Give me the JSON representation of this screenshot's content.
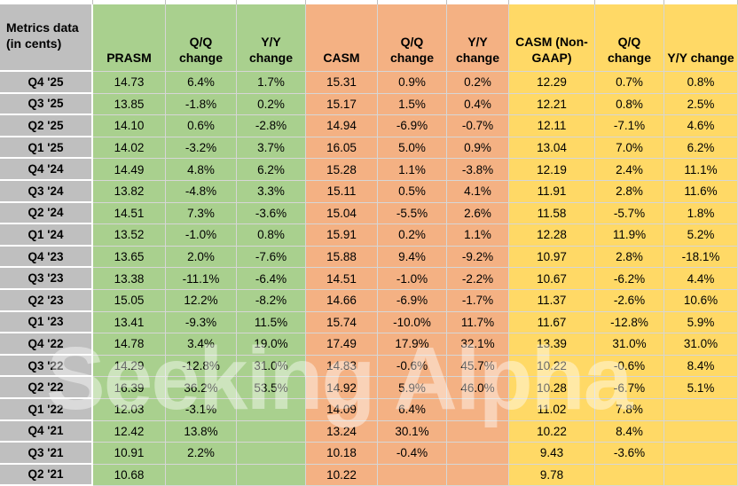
{
  "watermark": "Seeking Alpha",
  "colors": {
    "label_bg": "#BFBFBF",
    "green": "#A9D08E",
    "orange": "#F4B183",
    "yellow": "#FFD966",
    "gridline": "#D6D6D6",
    "text": "#000000"
  },
  "chart_data": {
    "type": "table",
    "corner_header": "Metrics data\n(in cents)",
    "columns": [
      {
        "label": "PRASM",
        "group": "green"
      },
      {
        "label": "Q/Q change",
        "group": "green"
      },
      {
        "label": "Y/Y change",
        "group": "green"
      },
      {
        "label": "CASM",
        "group": "orange"
      },
      {
        "label": "Q/Q change",
        "group": "orange"
      },
      {
        "label": "Y/Y change",
        "group": "orange"
      },
      {
        "label": "CASM (Non-GAAP)",
        "group": "yellow"
      },
      {
        "label": "Q/Q change",
        "group": "yellow"
      },
      {
        "label": "Y/Y change",
        "group": "yellow"
      }
    ],
    "rows": [
      {
        "label": "Q4 '25",
        "values": [
          "14.73",
          "6.4%",
          "1.7%",
          "15.31",
          "0.9%",
          "0.2%",
          "12.29",
          "0.7%",
          "0.8%"
        ]
      },
      {
        "label": "Q3 '25",
        "values": [
          "13.85",
          "-1.8%",
          "0.2%",
          "15.17",
          "1.5%",
          "0.4%",
          "12.21",
          "0.8%",
          "2.5%"
        ]
      },
      {
        "label": "Q2 '25",
        "values": [
          "14.10",
          "0.6%",
          "-2.8%",
          "14.94",
          "-6.9%",
          "-0.7%",
          "12.11",
          "-7.1%",
          "4.6%"
        ]
      },
      {
        "label": "Q1 '25",
        "values": [
          "14.02",
          "-3.2%",
          "3.7%",
          "16.05",
          "5.0%",
          "0.9%",
          "13.04",
          "7.0%",
          "6.2%"
        ]
      },
      {
        "label": "Q4 '24",
        "values": [
          "14.49",
          "4.8%",
          "6.2%",
          "15.28",
          "1.1%",
          "-3.8%",
          "12.19",
          "2.4%",
          "11.1%"
        ]
      },
      {
        "label": "Q3 '24",
        "values": [
          "13.82",
          "-4.8%",
          "3.3%",
          "15.11",
          "0.5%",
          "4.1%",
          "11.91",
          "2.8%",
          "11.6%"
        ]
      },
      {
        "label": "Q2 '24",
        "values": [
          "14.51",
          "7.3%",
          "-3.6%",
          "15.04",
          "-5.5%",
          "2.6%",
          "11.58",
          "-5.7%",
          "1.8%"
        ]
      },
      {
        "label": "Q1 '24",
        "values": [
          "13.52",
          "-1.0%",
          "0.8%",
          "15.91",
          "0.2%",
          "1.1%",
          "12.28",
          "11.9%",
          "5.2%"
        ]
      },
      {
        "label": "Q4 '23",
        "values": [
          "13.65",
          "2.0%",
          "-7.6%",
          "15.88",
          "9.4%",
          "-9.2%",
          "10.97",
          "2.8%",
          "-18.1%"
        ]
      },
      {
        "label": "Q3 '23",
        "values": [
          "13.38",
          "-11.1%",
          "-6.4%",
          "14.51",
          "-1.0%",
          "-2.2%",
          "10.67",
          "-6.2%",
          "4.4%"
        ]
      },
      {
        "label": "Q2 '23",
        "values": [
          "15.05",
          "12.2%",
          "-8.2%",
          "14.66",
          "-6.9%",
          "-1.7%",
          "11.37",
          "-2.6%",
          "10.6%"
        ]
      },
      {
        "label": "Q1 '23",
        "values": [
          "13.41",
          "-9.3%",
          "11.5%",
          "15.74",
          "-10.0%",
          "11.7%",
          "11.67",
          "-12.8%",
          "5.9%"
        ]
      },
      {
        "label": "Q4 '22",
        "values": [
          "14.78",
          "3.4%",
          "19.0%",
          "17.49",
          "17.9%",
          "32.1%",
          "13.39",
          "31.0%",
          "31.0%"
        ]
      },
      {
        "label": "Q3 '22",
        "values": [
          "14.29",
          "-12.8%",
          "31.0%",
          "14.83",
          "-0.6%",
          "45.7%",
          "10.22",
          "-0.6%",
          "8.4%"
        ]
      },
      {
        "label": "Q2 '22",
        "values": [
          "16.39",
          "36.2%",
          "53.5%",
          "14.92",
          "5.9%",
          "46.0%",
          "10.28",
          "-6.7%",
          "5.1%"
        ]
      },
      {
        "label": "Q1 '22",
        "values": [
          "12.03",
          "-3.1%",
          "",
          "14.09",
          "6.4%",
          "",
          "11.02",
          "7.8%",
          ""
        ]
      },
      {
        "label": "Q4 '21",
        "values": [
          "12.42",
          "13.8%",
          "",
          "13.24",
          "30.1%",
          "",
          "10.22",
          "8.4%",
          ""
        ]
      },
      {
        "label": "Q3 '21",
        "values": [
          "10.91",
          "2.2%",
          "",
          "10.18",
          "-0.4%",
          "",
          "9.43",
          "-3.6%",
          ""
        ]
      },
      {
        "label": "Q2 '21",
        "values": [
          "10.68",
          "",
          "",
          "10.22",
          "",
          "",
          "9.78",
          "",
          ""
        ]
      }
    ]
  }
}
